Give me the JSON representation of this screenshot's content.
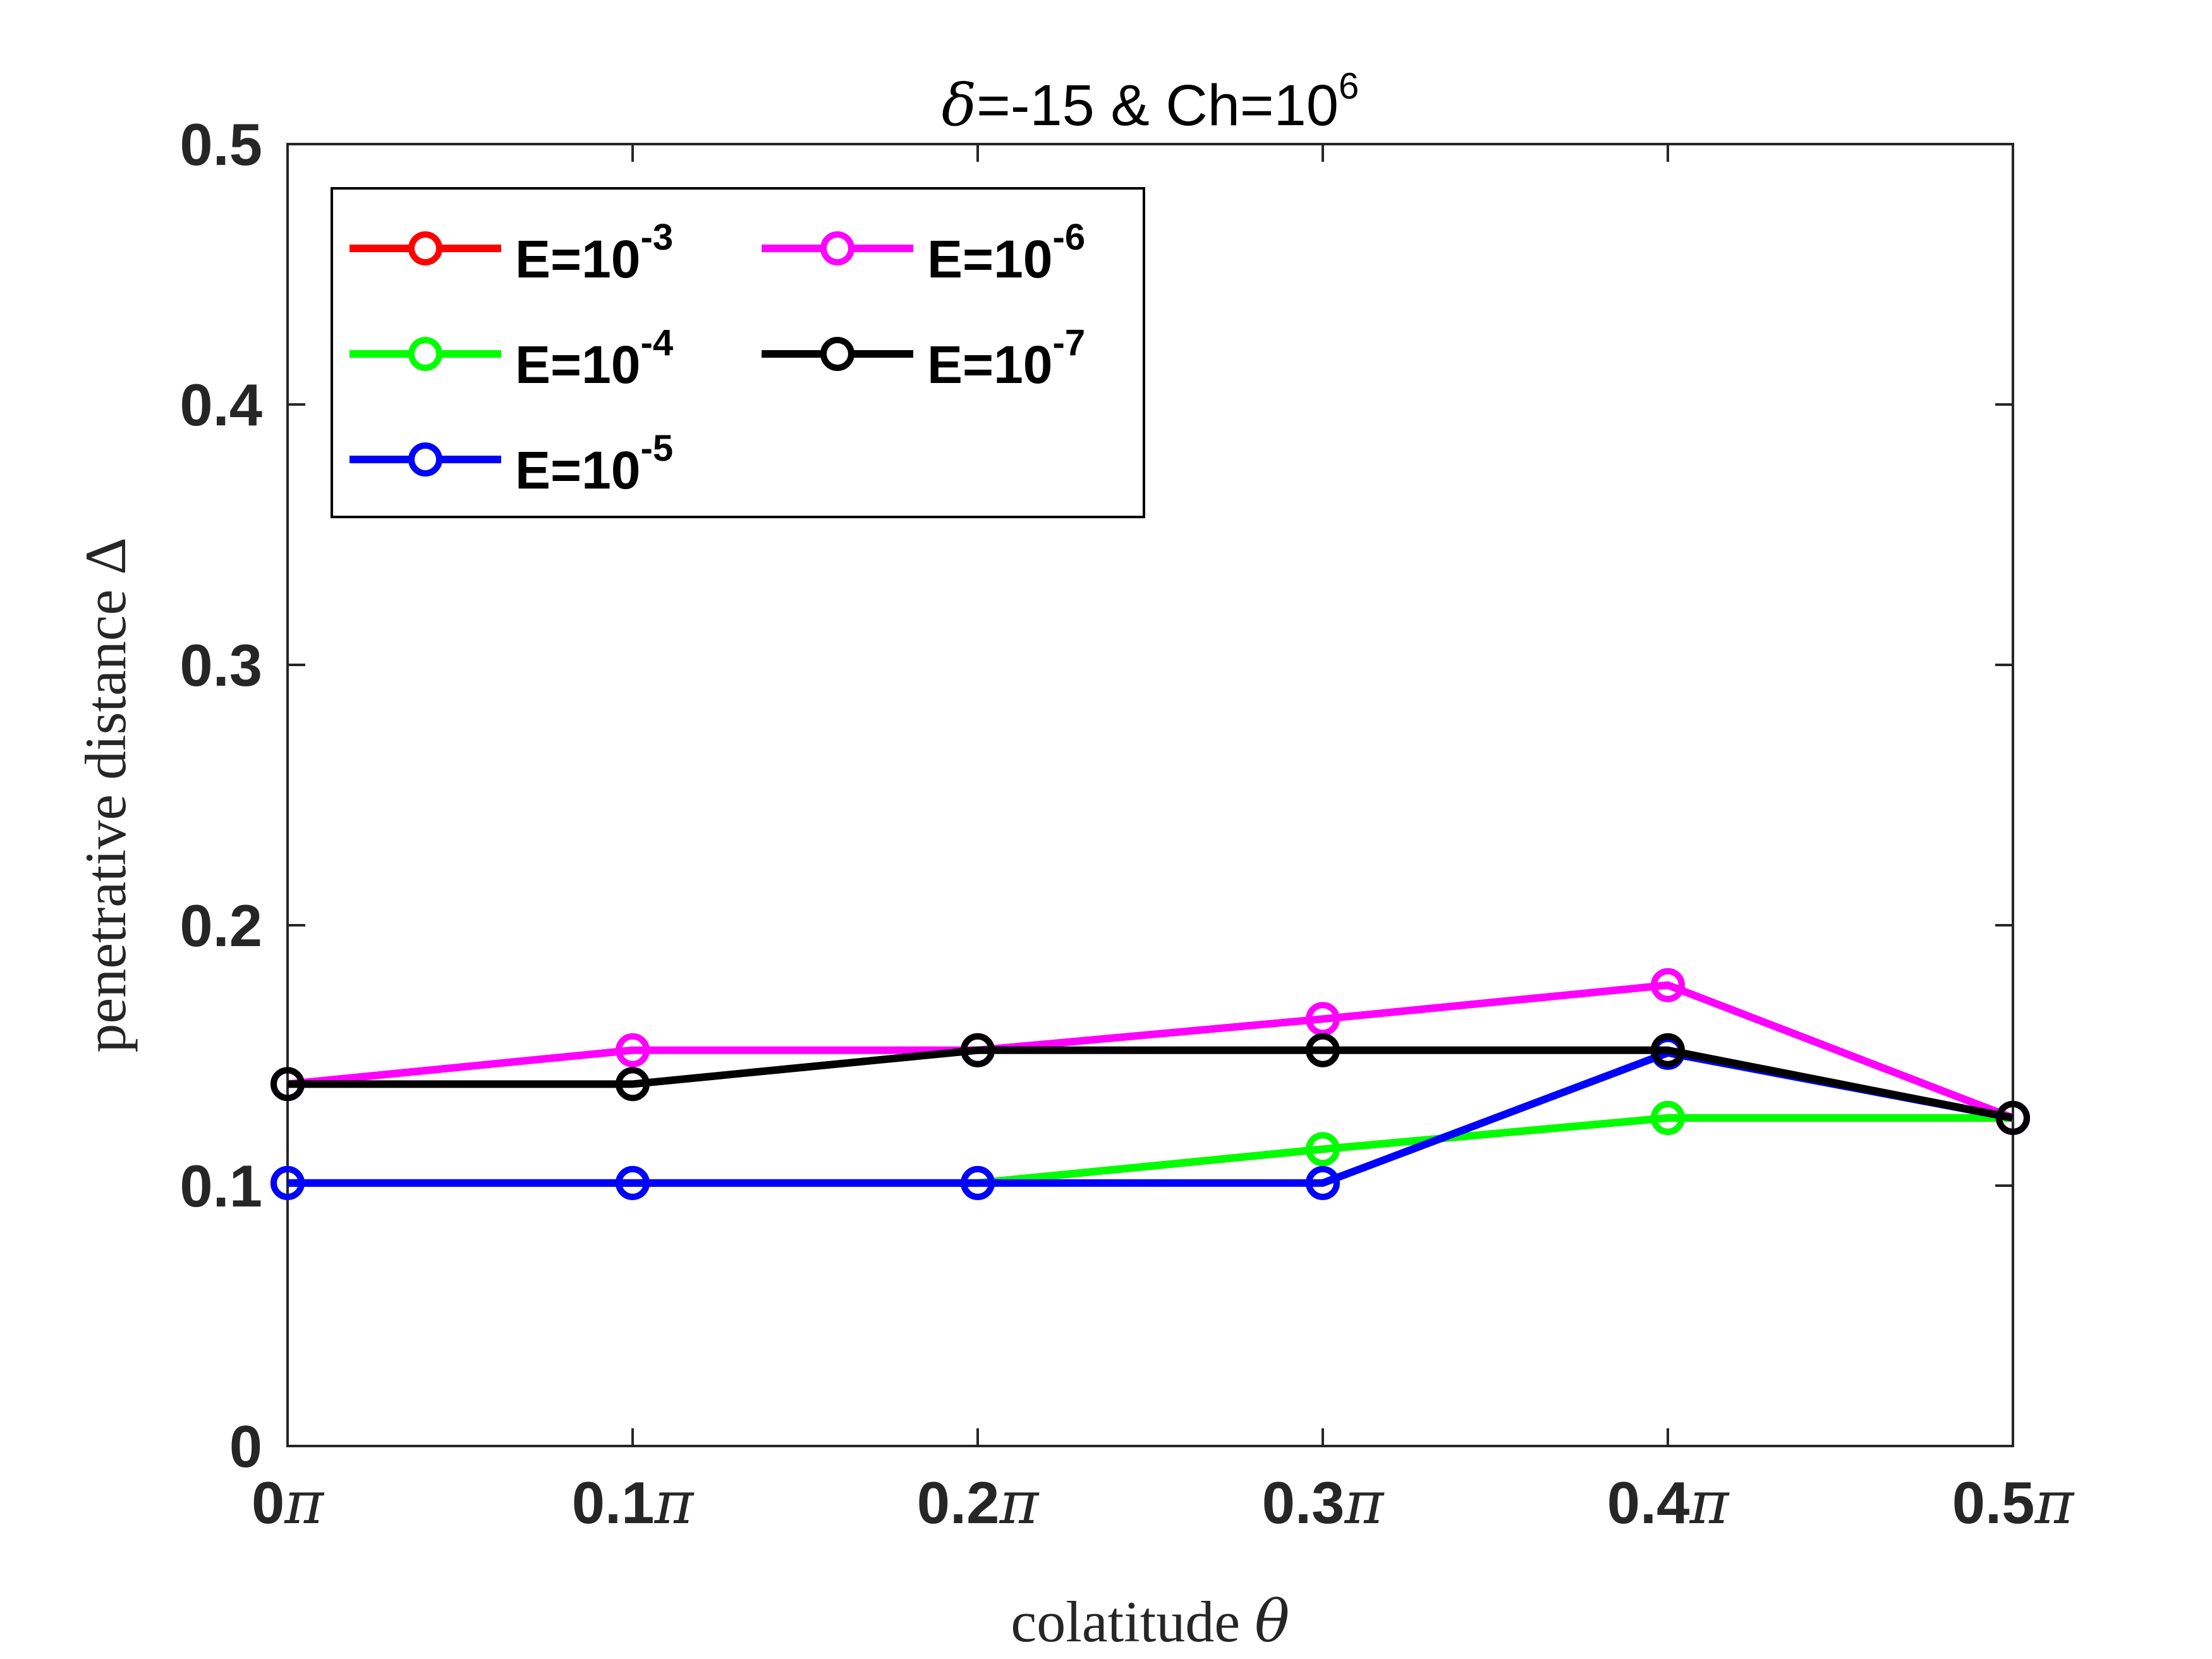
{
  "chart_data": {
    "type": "line",
    "title": {
      "symbol": "δ",
      "text": "=-15 & Ch=10",
      "exponent": "6"
    },
    "xlabel": {
      "text": "colatitude ",
      "symbol": "θ"
    },
    "ylabel": {
      "text": "penetrative distance ",
      "symbol": "Δ"
    },
    "x": [
      0,
      0.1,
      0.2,
      0.3,
      0.4,
      0.5
    ],
    "xtick_labels": [
      {
        "num": "0",
        "sym": "π"
      },
      {
        "num": "0.1",
        "sym": "π"
      },
      {
        "num": "0.2",
        "sym": "π"
      },
      {
        "num": "0.3",
        "sym": "π"
      },
      {
        "num": "0.4",
        "sym": "π"
      },
      {
        "num": "0.5",
        "sym": "π"
      }
    ],
    "xlim": [
      0,
      0.5
    ],
    "ylim": [
      0,
      0.5
    ],
    "yticks": [
      0,
      0.1,
      0.2,
      0.3,
      0.4,
      0.5
    ],
    "ytick_labels": [
      "0",
      "0.1",
      "0.2",
      "0.3",
      "0.4",
      "0.5"
    ],
    "grid": false,
    "legend_position": "top-left",
    "series": [
      {
        "name": "E=10",
        "exponent": "-3",
        "color": "#ff0000",
        "values": [
          0.101,
          0.101,
          0.101,
          0.114,
          0.126,
          0.126
        ]
      },
      {
        "name": "E=10",
        "exponent": "-4",
        "color": "#00ff00",
        "values": [
          0.101,
          0.101,
          0.101,
          0.114,
          0.126,
          0.126
        ]
      },
      {
        "name": "E=10",
        "exponent": "-5",
        "color": "#0000ff",
        "values": [
          0.101,
          0.101,
          0.101,
          0.101,
          0.151,
          0.126
        ]
      },
      {
        "name": "E=10",
        "exponent": "-6",
        "color": "#ff00ff",
        "values": [
          0.139,
          0.152,
          0.152,
          0.164,
          0.177,
          0.126
        ]
      },
      {
        "name": "E=10",
        "exponent": "-7",
        "color": "#000000",
        "values": [
          0.139,
          0.139,
          0.152,
          0.152,
          0.152,
          0.126
        ]
      }
    ]
  }
}
